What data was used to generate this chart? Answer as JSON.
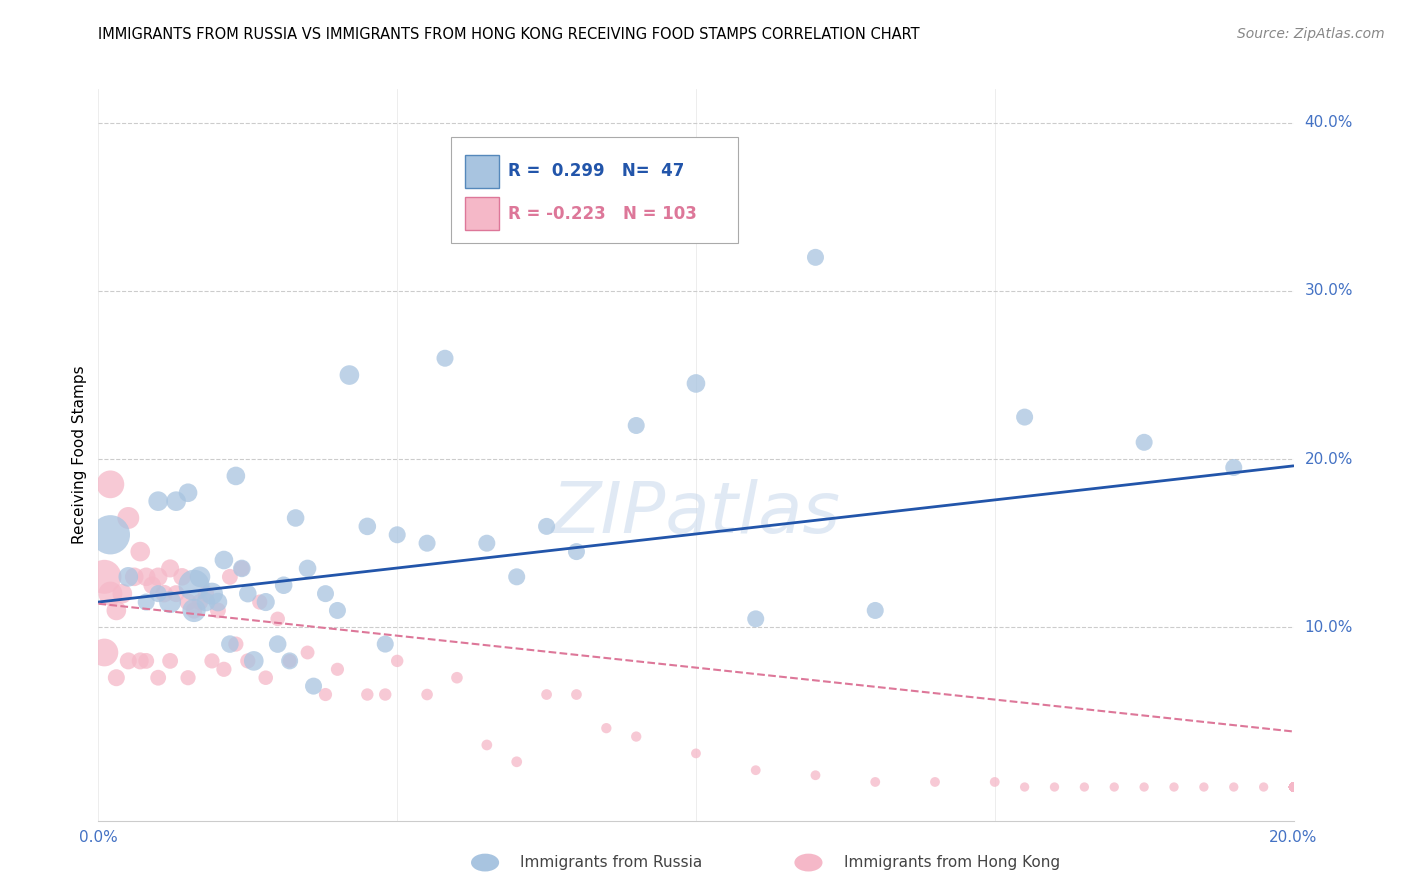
{
  "title": "IMMIGRANTS FROM RUSSIA VS IMMIGRANTS FROM HONG KONG RECEIVING FOOD STAMPS CORRELATION CHART",
  "source": "Source: ZipAtlas.com",
  "ylabel": "Receiving Food Stamps",
  "xmin": 0.0,
  "xmax": 0.2,
  "ymin": -0.015,
  "ymax": 0.42,
  "yticks": [
    0.0,
    0.1,
    0.2,
    0.3,
    0.4
  ],
  "ytick_labels": [
    "",
    "10.0%",
    "20.0%",
    "30.0%",
    "40.0%"
  ],
  "xticks": [
    0.0,
    0.05,
    0.1,
    0.15,
    0.2
  ],
  "xtick_labels": [
    "0.0%",
    "",
    "",
    "",
    "20.0%"
  ],
  "russia_color": "#a8c4e0",
  "russia_edge_color": "#5588bb",
  "russia_line_color": "#2255aa",
  "hk_color": "#f5b8c8",
  "hk_edge_color": "#dd7799",
  "hk_line_color": "#dd7799",
  "legend_r_russia": "0.299",
  "legend_n_russia": "47",
  "legend_r_hk": "-0.223",
  "legend_n_hk": "103",
  "watermark": "ZIPatlas",
  "russia_scatter_x": [
    0.002,
    0.005,
    0.008,
    0.01,
    0.01,
    0.012,
    0.013,
    0.015,
    0.016,
    0.016,
    0.017,
    0.018,
    0.019,
    0.02,
    0.021,
    0.022,
    0.023,
    0.024,
    0.025,
    0.026,
    0.028,
    0.03,
    0.031,
    0.032,
    0.033,
    0.035,
    0.036,
    0.038,
    0.04,
    0.042,
    0.045,
    0.048,
    0.05,
    0.055,
    0.058,
    0.065,
    0.07,
    0.075,
    0.08,
    0.09,
    0.1,
    0.11,
    0.12,
    0.13,
    0.155,
    0.175,
    0.19
  ],
  "russia_scatter_y": [
    0.155,
    0.13,
    0.115,
    0.175,
    0.12,
    0.115,
    0.175,
    0.18,
    0.125,
    0.11,
    0.13,
    0.115,
    0.12,
    0.115,
    0.14,
    0.09,
    0.19,
    0.135,
    0.12,
    0.08,
    0.115,
    0.09,
    0.125,
    0.08,
    0.165,
    0.135,
    0.065,
    0.12,
    0.11,
    0.25,
    0.16,
    0.09,
    0.155,
    0.15,
    0.26,
    0.15,
    0.13,
    0.16,
    0.145,
    0.22,
    0.245,
    0.105,
    0.32,
    0.11,
    0.225,
    0.21,
    0.195
  ],
  "russia_scatter_size": [
    800,
    200,
    150,
    200,
    150,
    250,
    200,
    180,
    500,
    280,
    220,
    180,
    250,
    180,
    180,
    160,
    180,
    160,
    160,
    200,
    170,
    160,
    160,
    150,
    160,
    160,
    150,
    150,
    150,
    200,
    160,
    150,
    150,
    150,
    150,
    150,
    150,
    150,
    150,
    150,
    180,
    150,
    150,
    150,
    150,
    150,
    150
  ],
  "hk_scatter_x": [
    0.001,
    0.001,
    0.002,
    0.002,
    0.003,
    0.003,
    0.004,
    0.005,
    0.005,
    0.006,
    0.007,
    0.007,
    0.008,
    0.008,
    0.009,
    0.01,
    0.01,
    0.011,
    0.012,
    0.012,
    0.013,
    0.014,
    0.015,
    0.015,
    0.016,
    0.017,
    0.018,
    0.019,
    0.02,
    0.021,
    0.022,
    0.023,
    0.024,
    0.025,
    0.027,
    0.028,
    0.03,
    0.032,
    0.035,
    0.038,
    0.04,
    0.045,
    0.048,
    0.05,
    0.055,
    0.06,
    0.065,
    0.07,
    0.075,
    0.08,
    0.085,
    0.09,
    0.1,
    0.11,
    0.12,
    0.13,
    0.14,
    0.15,
    0.155,
    0.16,
    0.165,
    0.17,
    0.175,
    0.18,
    0.185,
    0.19,
    0.195,
    0.2,
    0.2,
    0.2,
    0.2,
    0.2,
    0.2,
    0.2,
    0.2,
    0.2,
    0.2,
    0.2,
    0.2,
    0.2,
    0.2,
    0.2,
    0.2,
    0.2,
    0.2,
    0.2,
    0.2,
    0.2,
    0.2,
    0.2,
    0.2,
    0.2,
    0.2,
    0.2,
    0.2,
    0.2,
    0.2,
    0.2,
    0.2,
    0.2,
    0.2,
    0.2,
    0.2
  ],
  "hk_scatter_y": [
    0.13,
    0.085,
    0.185,
    0.12,
    0.11,
    0.07,
    0.12,
    0.165,
    0.08,
    0.13,
    0.145,
    0.08,
    0.13,
    0.08,
    0.125,
    0.13,
    0.07,
    0.12,
    0.135,
    0.08,
    0.12,
    0.13,
    0.115,
    0.07,
    0.11,
    0.115,
    0.12,
    0.08,
    0.11,
    0.075,
    0.13,
    0.09,
    0.135,
    0.08,
    0.115,
    0.07,
    0.105,
    0.08,
    0.085,
    0.06,
    0.075,
    0.06,
    0.06,
    0.08,
    0.06,
    0.07,
    0.03,
    0.02,
    0.06,
    0.06,
    0.04,
    0.035,
    0.025,
    0.015,
    0.012,
    0.008,
    0.008,
    0.008,
    0.005,
    0.005,
    0.005,
    0.005,
    0.005,
    0.005,
    0.005,
    0.005,
    0.005,
    0.005,
    0.005,
    0.005,
    0.005,
    0.005,
    0.005,
    0.005,
    0.005,
    0.005,
    0.005,
    0.005,
    0.005,
    0.005,
    0.005,
    0.005,
    0.005,
    0.005,
    0.005,
    0.005,
    0.005,
    0.005,
    0.005,
    0.005,
    0.005,
    0.005,
    0.005,
    0.005,
    0.005,
    0.005,
    0.005,
    0.005,
    0.005,
    0.005,
    0.005,
    0.005,
    0.005
  ],
  "hk_scatter_size": [
    600,
    400,
    400,
    300,
    200,
    150,
    200,
    250,
    150,
    180,
    200,
    150,
    180,
    130,
    160,
    180,
    130,
    160,
    170,
    130,
    150,
    160,
    150,
    120,
    140,
    140,
    140,
    120,
    130,
    120,
    130,
    120,
    130,
    120,
    120,
    110,
    110,
    100,
    100,
    90,
    90,
    80,
    80,
    80,
    70,
    70,
    60,
    60,
    60,
    60,
    55,
    55,
    50,
    50,
    50,
    50,
    50,
    50,
    45,
    45,
    45,
    45,
    45,
    45,
    45,
    45,
    45,
    45,
    45,
    45,
    45,
    45,
    45,
    45,
    45,
    45,
    45,
    45,
    45,
    45,
    45,
    45,
    45,
    45,
    45,
    45,
    45,
    45,
    45,
    45,
    45,
    45,
    45,
    45,
    45,
    45,
    45,
    45,
    45,
    45,
    45,
    45,
    45
  ],
  "russia_trend_x": [
    0.0,
    0.2
  ],
  "russia_trend_y": [
    0.115,
    0.196
  ],
  "hk_trend_x": [
    0.0,
    0.2
  ],
  "hk_trend_y": [
    0.114,
    0.038
  ],
  "tick_color": "#4472c4",
  "grid_color": "#cccccc",
  "background_color": "#ffffff"
}
